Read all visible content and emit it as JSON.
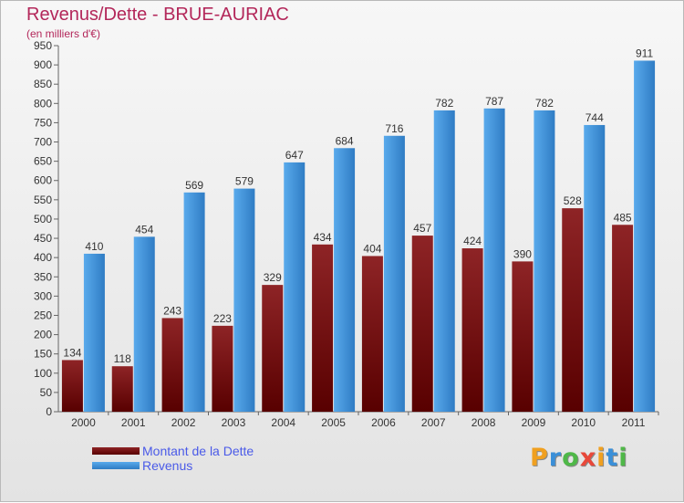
{
  "header": {
    "title": "Revenus/Dette - BRUE-AURIAC",
    "subtitle": "(en milliers d'€)"
  },
  "chart_data": {
    "type": "bar",
    "title": "Revenus/Dette - BRUE-AURIAC",
    "ylabel": "(en milliers d'€)",
    "xlabel": "",
    "categories": [
      "2000",
      "2001",
      "2002",
      "2003",
      "2004",
      "2005",
      "2006",
      "2007",
      "2008",
      "2009",
      "2010",
      "2011"
    ],
    "series": [
      {
        "name": "Montant de la Dette",
        "color": "#7a1416",
        "values": [
          134,
          118,
          243,
          223,
          329,
          434,
          404,
          457,
          424,
          390,
          528,
          485
        ]
      },
      {
        "name": "Revenus",
        "color": "#3d94dc",
        "values": [
          410,
          454,
          569,
          579,
          647,
          684,
          716,
          782,
          787,
          782,
          744,
          911
        ]
      }
    ],
    "ylim": [
      0,
      950
    ],
    "ytick_step": 50,
    "grid": false,
    "legend_position": "bottom-left"
  },
  "colors": {
    "title": "#b3275a",
    "legend_text": "#4a5ae8",
    "dette": "#7a1416",
    "revenus": "#3d94dc"
  },
  "logo": {
    "letters": [
      "P",
      "r",
      "o",
      "x",
      "i",
      "t",
      "i"
    ],
    "colors": [
      "#f0a020",
      "#3a8fd8",
      "#4fb848",
      "#e8483a",
      "#f0a020",
      "#3a8fd8",
      "#4fb848"
    ]
  }
}
